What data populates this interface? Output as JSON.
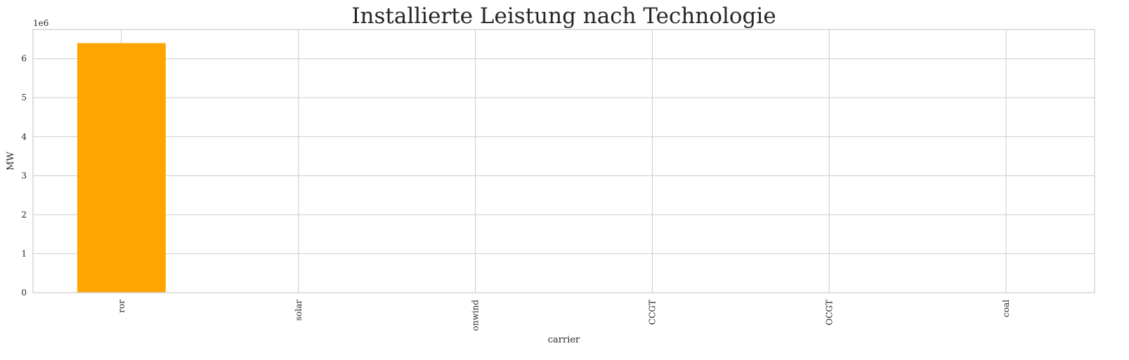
{
  "chart_data": {
    "type": "bar",
    "title": "Installierte Leistung nach Technologie",
    "xlabel": "carrier",
    "ylabel": "MW",
    "y_offset_label": "1e6",
    "categories": [
      "ror",
      "solar",
      "onwind",
      "CCGT",
      "OCGT",
      "coal"
    ],
    "values": [
      6400000,
      0,
      0,
      0,
      0,
      0
    ],
    "ylim": [
      0,
      6750000
    ],
    "yticks": [
      0,
      1000000,
      2000000,
      3000000,
      4000000,
      5000000,
      6000000
    ],
    "ytick_labels": [
      "0",
      "1",
      "2",
      "3",
      "4",
      "5",
      "6"
    ],
    "bar_color": "#ffa500",
    "grid": true
  }
}
